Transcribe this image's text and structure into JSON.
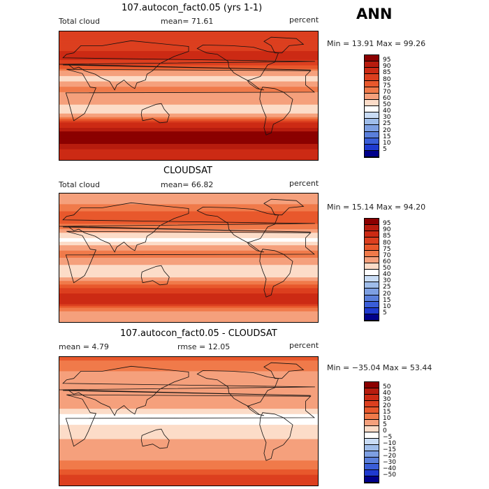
{
  "season_label": "ANN",
  "units": "percent",
  "panels": [
    {
      "title": "107.autocon_fact0.05 (yrs 1-1)",
      "variable": "Total cloud",
      "stat_text": "mean=  71.61",
      "minmax_text": "Min =  13.91 Max =  99.26",
      "levels": [
        "95",
        "90",
        "85",
        "80",
        "75",
        "70",
        "60",
        "50",
        "40",
        "30",
        "25",
        "20",
        "15",
        "10",
        "5"
      ],
      "colors": [
        "#8b0000",
        "#b71c0e",
        "#cc2a14",
        "#dc3f1f",
        "#e8582c",
        "#f07a4a",
        "#f5a07c",
        "#fcdcc8",
        "#ffffff",
        "#c9dcf5",
        "#9fbdea",
        "#7d9fe2",
        "#5a7fdb",
        "#3a5ed8",
        "#1f3ad0",
        "#00008b"
      ],
      "chart_data": {
        "type": "heatmap",
        "title": "107.autocon_fact0.05 (yrs 1-1)",
        "mean": 71.61,
        "min": 13.91,
        "max": 99.26,
        "contour_levels": [
          5,
          10,
          15,
          20,
          25,
          30,
          40,
          50,
          60,
          70,
          75,
          80,
          85,
          90,
          95
        ],
        "zonal_profile": [
          {
            "lat": 85,
            "value": 80
          },
          {
            "lat": 70,
            "value": 82
          },
          {
            "lat": 55,
            "value": 88
          },
          {
            "lat": 40,
            "value": 78
          },
          {
            "lat": 25,
            "value": 55
          },
          {
            "lat": 10,
            "value": 72
          },
          {
            "lat": 0,
            "value": 68
          },
          {
            "lat": -10,
            "value": 62
          },
          {
            "lat": -20,
            "value": 52
          },
          {
            "lat": -35,
            "value": 82
          },
          {
            "lat": -50,
            "value": 95
          },
          {
            "lat": -65,
            "value": 97
          },
          {
            "lat": -80,
            "value": 85
          }
        ]
      }
    },
    {
      "title": "CLOUDSAT",
      "variable": "Total cloud",
      "stat_text": "mean=  66.82",
      "minmax_text": "Min =  15.14 Max =  94.20",
      "levels": [
        "95",
        "90",
        "85",
        "80",
        "75",
        "70",
        "60",
        "50",
        "40",
        "30",
        "25",
        "20",
        "15",
        "10",
        "5"
      ],
      "colors": [
        "#8b0000",
        "#b71c0e",
        "#cc2a14",
        "#dc3f1f",
        "#e8582c",
        "#f07a4a",
        "#f5a07c",
        "#fcdcc8",
        "#ffffff",
        "#c9dcf5",
        "#9fbdea",
        "#7d9fe2",
        "#5a7fdb",
        "#3a5ed8",
        "#1f3ad0",
        "#00008b"
      ],
      "chart_data": {
        "type": "heatmap",
        "title": "CLOUDSAT",
        "mean": 66.82,
        "min": 15.14,
        "max": 94.2,
        "contour_levels": [
          5,
          10,
          15,
          20,
          25,
          30,
          40,
          50,
          60,
          70,
          75,
          80,
          85,
          90,
          95
        ],
        "zonal_profile": [
          {
            "lat": 85,
            "value": 65
          },
          {
            "lat": 70,
            "value": 72
          },
          {
            "lat": 55,
            "value": 80
          },
          {
            "lat": 40,
            "value": 70
          },
          {
            "lat": 25,
            "value": 45
          },
          {
            "lat": 10,
            "value": 72
          },
          {
            "lat": 0,
            "value": 70
          },
          {
            "lat": -10,
            "value": 60
          },
          {
            "lat": -20,
            "value": 50
          },
          {
            "lat": -35,
            "value": 72
          },
          {
            "lat": -50,
            "value": 86
          },
          {
            "lat": -65,
            "value": 85
          },
          {
            "lat": -80,
            "value": 60
          }
        ]
      }
    },
    {
      "title": "107.autocon_fact0.05 - CLOUDSAT",
      "variable": "",
      "stat_text": "mean =    4.79",
      "stat2_text": "rmse =  12.05",
      "minmax_text": "Min = −35.04 Max =  53.44",
      "levels": [
        "50",
        "40",
        "30",
        "20",
        "15",
        "10",
        "5",
        "0",
        "−5",
        "−10",
        "−15",
        "−20",
        "−30",
        "−40",
        "−50"
      ],
      "colors": [
        "#8b0000",
        "#b71c0e",
        "#cc2a14",
        "#dc3f1f",
        "#e8582c",
        "#f07a4a",
        "#f5a07c",
        "#fcdcc8",
        "#ffffff",
        "#c9dcf5",
        "#9fbdea",
        "#7d9fe2",
        "#5a7fdb",
        "#3a5ed8",
        "#1f3ad0",
        "#00008b"
      ],
      "chart_data": {
        "type": "heatmap",
        "title": "107.autocon_fact0.05 - CLOUDSAT",
        "mean": 4.79,
        "rmse": 12.05,
        "min": -35.04,
        "max": 53.44,
        "contour_levels": [
          -50,
          -40,
          -30,
          -20,
          -15,
          -10,
          -5,
          0,
          5,
          10,
          15,
          20,
          30,
          40,
          50
        ],
        "zonal_profile": [
          {
            "lat": 85,
            "value": 15
          },
          {
            "lat": 70,
            "value": 10
          },
          {
            "lat": 55,
            "value": 8
          },
          {
            "lat": 40,
            "value": 8
          },
          {
            "lat": 25,
            "value": 10
          },
          {
            "lat": 10,
            "value": 0
          },
          {
            "lat": 0,
            "value": -2
          },
          {
            "lat": -10,
            "value": 2
          },
          {
            "lat": -20,
            "value": 2
          },
          {
            "lat": -35,
            "value": 10
          },
          {
            "lat": -50,
            "value": 9
          },
          {
            "lat": -65,
            "value": 12
          },
          {
            "lat": -80,
            "value": 25
          }
        ]
      }
    }
  ]
}
